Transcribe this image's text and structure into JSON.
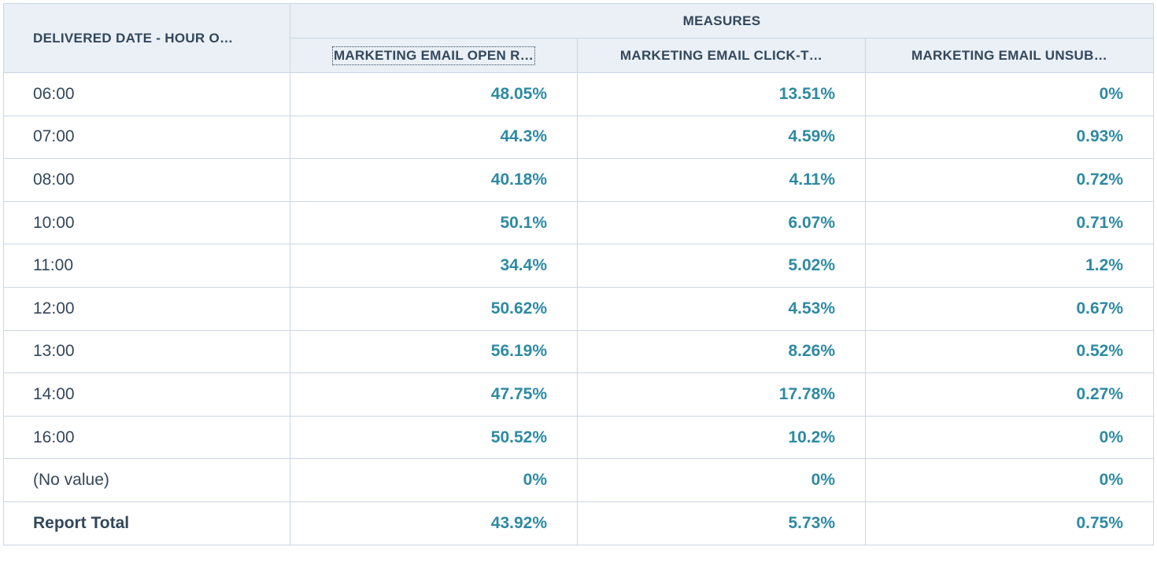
{
  "table": {
    "dimension_header": "DELIVERED DATE - HOUR O…",
    "group_header": "MEASURES",
    "columns": [
      "MARKETING EMAIL OPEN R…",
      "MARKETING EMAIL CLICK-T…",
      "MARKETING EMAIL UNSUB…"
    ],
    "rows": [
      {
        "label": "06:00",
        "values": [
          "48.05%",
          "13.51%",
          "0%"
        ]
      },
      {
        "label": "07:00",
        "values": [
          "44.3%",
          "4.59%",
          "0.93%"
        ]
      },
      {
        "label": "08:00",
        "values": [
          "40.18%",
          "4.11%",
          "0.72%"
        ]
      },
      {
        "label": "10:00",
        "values": [
          "50.1%",
          "6.07%",
          "0.71%"
        ]
      },
      {
        "label": "11:00",
        "values": [
          "34.4%",
          "5.02%",
          "1.2%"
        ]
      },
      {
        "label": "12:00",
        "values": [
          "50.62%",
          "4.53%",
          "0.67%"
        ]
      },
      {
        "label": "13:00",
        "values": [
          "56.19%",
          "8.26%",
          "0.52%"
        ]
      },
      {
        "label": "14:00",
        "values": [
          "47.75%",
          "17.78%",
          "0.27%"
        ]
      },
      {
        "label": "16:00",
        "values": [
          "50.52%",
          "10.2%",
          "0%"
        ]
      },
      {
        "label": "(No value)",
        "values": [
          "0%",
          "0%",
          "0%"
        ]
      }
    ],
    "total": {
      "label": "Report Total",
      "values": [
        "43.92%",
        "5.73%",
        "0.75%"
      ]
    }
  },
  "colors": {
    "header_bg": "#eaf0f6",
    "border": "#cbd6e2",
    "text": "#33475b",
    "value": "#2d8aa3"
  }
}
